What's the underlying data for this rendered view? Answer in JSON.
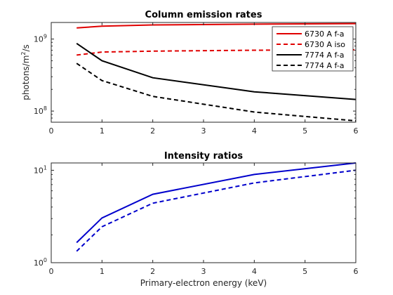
{
  "chart_data": [
    {
      "type": "line",
      "title": "Column emission rates",
      "xlabel": "",
      "ylabel": "photons/m",
      "ylabel_sup": "2",
      "ylabel_suffix": "/s",
      "xscale": "linear",
      "yscale": "log",
      "xlim": [
        0,
        6
      ],
      "ylim": [
        70000000,
        1700000000
      ],
      "xticks": [
        0,
        1,
        2,
        3,
        4,
        5,
        6
      ],
      "xtick_labels": [
        "0",
        "1",
        "2",
        "3",
        "4",
        "5",
        "6"
      ],
      "yticks": [
        100000000,
        1000000000
      ],
      "ytick_labels": [
        {
          "base": "10",
          "exp": "8"
        },
        {
          "base": "10",
          "exp": "9"
        }
      ],
      "grid": false,
      "legend": "top-right",
      "series": [
        {
          "name": "6730 A f-a",
          "color": "#e00000",
          "style": "solid",
          "x": [
            0.5,
            1,
            2,
            4,
            6
          ],
          "y": [
            1430000000,
            1510000000,
            1570000000,
            1610000000,
            1640000000
          ]
        },
        {
          "name": "6730 A iso",
          "color": "#e00000",
          "style": "dashed",
          "x": [
            0.5,
            1,
            2,
            4,
            6
          ],
          "y": [
            600000000,
            660000000,
            680000000,
            700000000,
            710000000
          ]
        },
        {
          "name": "7774 A f-a",
          "color": "#000000",
          "style": "solid",
          "x": [
            0.5,
            1,
            2,
            4,
            6
          ],
          "y": [
            870000000,
            500000000,
            290000000,
            185000000,
            145000000
          ]
        },
        {
          "name": "7774 A f-a",
          "color": "#000000",
          "style": "dashed",
          "x": [
            0.5,
            1,
            2,
            4,
            6
          ],
          "y": [
            460000000,
            265000000,
            160000000,
            97000000,
            73000000
          ]
        }
      ]
    },
    {
      "type": "line",
      "title": "Intensity ratios",
      "xlabel": "Primary-electron energy (keV)",
      "ylabel": "",
      "xscale": "linear",
      "yscale": "log",
      "xlim": [
        0,
        6
      ],
      "ylim": [
        1,
        12
      ],
      "xticks": [
        0,
        1,
        2,
        3,
        4,
        5,
        6
      ],
      "xtick_labels": [
        "0",
        "1",
        "2",
        "3",
        "4",
        "5",
        "6"
      ],
      "yticks": [
        1,
        10
      ],
      "ytick_labels": [
        {
          "base": "10",
          "exp": "0"
        },
        {
          "base": "10",
          "exp": "1"
        }
      ],
      "grid": false,
      "series": [
        {
          "color": "#0000cc",
          "style": "solid",
          "x": [
            0.5,
            1,
            2,
            4,
            6
          ],
          "y": [
            1.65,
            3.05,
            5.5,
            9.0,
            12.0
          ]
        },
        {
          "color": "#0000cc",
          "style": "dashed",
          "x": [
            0.5,
            1,
            2,
            4,
            6
          ],
          "y": [
            1.33,
            2.45,
            4.4,
            7.3,
            10.0
          ]
        }
      ]
    }
  ]
}
